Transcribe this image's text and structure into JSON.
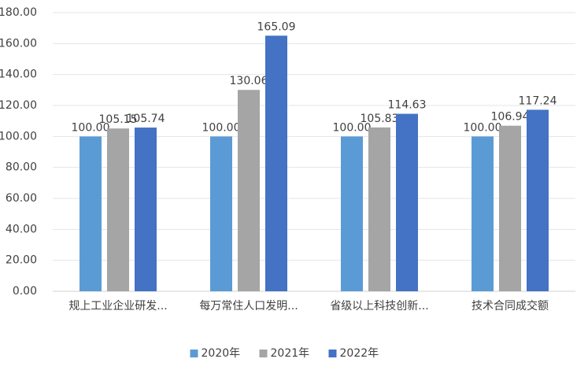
{
  "chart_data": {
    "type": "bar",
    "categories": [
      "规上工业企业研发...",
      "每万常住人口发明...",
      "省级以上科技创新...",
      "技术合同成交额"
    ],
    "series": [
      {
        "name": "2020年",
        "color": "#5b9bd5",
        "values": [
          100,
          100,
          100,
          100
        ],
        "value_labels": [
          "100.00",
          "100.00",
          "100.00",
          "100.00"
        ]
      },
      {
        "name": "2021年",
        "color": "#a5a5a5",
        "values": [
          105.15,
          130.06,
          105.83,
          106.94
        ],
        "value_labels": [
          "105.15",
          "130.06",
          "105.83",
          "106.94"
        ]
      },
      {
        "name": "2022年",
        "color": "#4472c4",
        "values": [
          105.74,
          165.09,
          114.63,
          117.24
        ],
        "value_labels": [
          "105.74",
          "165.09",
          "114.63",
          "117.24"
        ]
      }
    ],
    "ylim": [
      0,
      180
    ],
    "yticks": [
      {
        "value": 0,
        "label": "0.00"
      },
      {
        "value": 20,
        "label": "20.00"
      },
      {
        "value": 40,
        "label": "40.00"
      },
      {
        "value": 60,
        "label": "60.00"
      },
      {
        "value": 80,
        "label": "80.00"
      },
      {
        "value": 100,
        "label": "100.00"
      },
      {
        "value": 120,
        "label": "120.00"
      },
      {
        "value": 140,
        "label": "140.00"
      },
      {
        "value": 160,
        "label": "160.00"
      },
      {
        "value": 180,
        "label": "180.00"
      }
    ],
    "grid": true,
    "legend": "bottom"
  }
}
